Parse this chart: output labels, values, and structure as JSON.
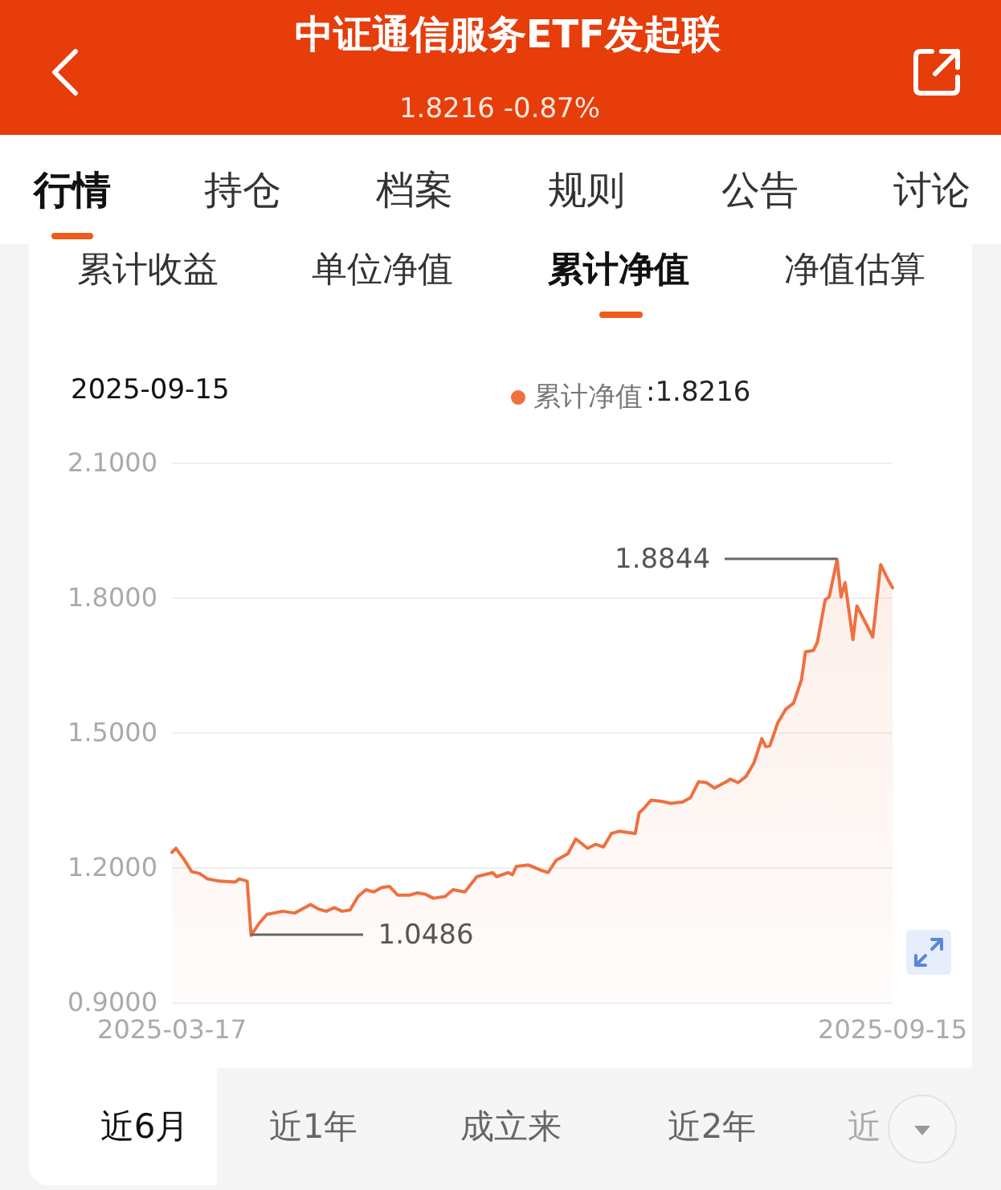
{
  "chart_data": {
    "type": "area",
    "title": "中证通信服务ETF发起联",
    "subtitle": "1.8216 -0.87%",
    "x": [
      "2025-03-17",
      "2025-03-18",
      "2025-03-20",
      "2025-03-22",
      "2025-03-24",
      "2025-03-26",
      "2025-03-29",
      "2025-04-02",
      "2025-04-03",
      "2025-04-05",
      "2025-04-06",
      "2025-04-08",
      "2025-04-10",
      "2025-04-14",
      "2025-04-17",
      "2025-04-21",
      "2025-04-23",
      "2025-04-25",
      "2025-04-27",
      "2025-04-29",
      "2025-05-01",
      "2025-05-03",
      "2025-05-05",
      "2025-05-07",
      "2025-05-09",
      "2025-05-11",
      "2025-05-13",
      "2025-05-16",
      "2025-05-18",
      "2025-05-20",
      "2025-05-22",
      "2025-05-25",
      "2025-05-27",
      "2025-05-30",
      "2025-06-02",
      "2025-06-06",
      "2025-06-07",
      "2025-06-10",
      "2025-06-11",
      "2025-06-12",
      "2025-06-15",
      "2025-06-18",
      "2025-06-20",
      "2025-06-22",
      "2025-06-25",
      "2025-06-27",
      "2025-06-30",
      "2025-07-02",
      "2025-07-04",
      "2025-07-06",
      "2025-07-08",
      "2025-07-12",
      "2025-07-13",
      "2025-07-14",
      "2025-07-16",
      "2025-07-19",
      "2025-07-21",
      "2025-07-24",
      "2025-07-26",
      "2025-07-28",
      "2025-07-30",
      "2025-08-01",
      "2025-08-04",
      "2025-08-05",
      "2025-08-07",
      "2025-08-09",
      "2025-08-11",
      "2025-08-13",
      "2025-08-14",
      "2025-08-15",
      "2025-08-17",
      "2025-08-19",
      "2025-08-21",
      "2025-08-23",
      "2025-08-24",
      "2025-08-26",
      "2025-08-27",
      "2025-08-29",
      "2025-08-30",
      "2025-09-01",
      "2025-09-02",
      "2025-09-03",
      "2025-09-05",
      "2025-09-06",
      "2025-09-10",
      "2025-09-12",
      "2025-09-14",
      "2025-09-15"
    ],
    "series": [
      {
        "name": "累计净值",
        "color": "#ef7040",
        "values": [
          1.233,
          1.242,
          1.218,
          1.19,
          1.186,
          1.174,
          1.169,
          1.167,
          1.174,
          1.169,
          1.0486,
          1.075,
          1.095,
          1.102,
          1.098,
          1.117,
          1.107,
          1.102,
          1.11,
          1.102,
          1.105,
          1.135,
          1.15,
          1.145,
          1.155,
          1.157,
          1.138,
          1.138,
          1.143,
          1.14,
          1.131,
          1.135,
          1.15,
          1.145,
          1.179,
          1.188,
          1.179,
          1.188,
          1.183,
          1.202,
          1.205,
          1.194,
          1.188,
          1.215,
          1.23,
          1.263,
          1.242,
          1.251,
          1.245,
          1.275,
          1.28,
          1.275,
          1.321,
          1.329,
          1.349,
          1.346,
          1.342,
          1.345,
          1.355,
          1.39,
          1.388,
          1.376,
          1.39,
          1.396,
          1.388,
          1.402,
          1.432,
          1.486,
          1.468,
          1.47,
          1.521,
          1.551,
          1.565,
          1.617,
          1.679,
          1.682,
          1.7,
          1.795,
          1.801,
          1.8844,
          1.801,
          1.833,
          1.706,
          1.781,
          1.712,
          1.873,
          1.837,
          1.8216
        ]
      }
    ],
    "xlim": [
      "2025-03-17",
      "2025-09-15"
    ],
    "xticks": [
      "2025-03-17",
      "2025-09-15"
    ],
    "ylim": [
      0.9,
      2.1
    ],
    "yticks": [
      {
        "value": 0.9,
        "label": "0.9000"
      },
      {
        "value": 1.2,
        "label": "1.2000"
      },
      {
        "value": 1.5,
        "label": "1.5000"
      },
      {
        "value": 1.8,
        "label": "1.8000"
      },
      {
        "value": 2.1,
        "label": "2.1000"
      }
    ],
    "grid": "y",
    "legend": "top right",
    "marker": "none",
    "line_style": "solid",
    "annotations": [
      "行情",
      "持仓",
      "档案",
      "规则",
      "公告",
      "讨论",
      "累计收益",
      "单位净值",
      "累计净值",
      "净值估算",
      "2025-09-15",
      "近6月",
      "近1年",
      "成立来",
      "近2年",
      "近",
      ":1.8216",
      "1.8844",
      "1.0486"
    ]
  }
}
